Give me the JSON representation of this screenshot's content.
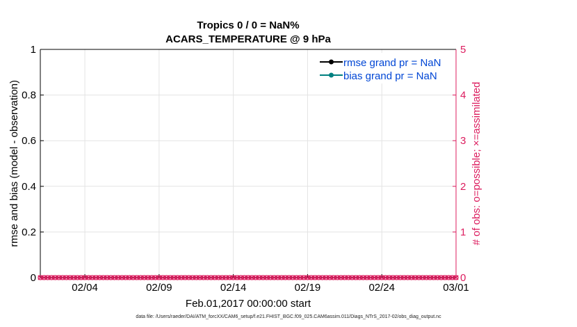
{
  "chart_data": {
    "type": "line",
    "title": "Tropics 0 / 0 = NaN%",
    "subtitle": "ACARS_TEMPERATURE @ 9 hPa",
    "xlabel": "Feb.01,2017 00:00:00 start",
    "ylabel_left": "rmse and bias (model - observation)",
    "ylabel_right": "# of obs: o=possible; ×=assimilated",
    "x_range_days": [
      0,
      28
    ],
    "x_ticks": [
      {
        "day": 3,
        "label": "02/04"
      },
      {
        "day": 8,
        "label": "02/09"
      },
      {
        "day": 13,
        "label": "02/14"
      },
      {
        "day": 18,
        "label": "02/19"
      },
      {
        "day": 23,
        "label": "02/24"
      },
      {
        "day": 28,
        "label": "03/01"
      }
    ],
    "ylim_left": [
      0,
      1
    ],
    "y_ticks_left": [
      "0",
      "0.2",
      "0.4",
      "0.6",
      "0.8",
      "1"
    ],
    "ylim_right": [
      0,
      5
    ],
    "y_ticks_right": [
      "0",
      "1",
      "2",
      "3",
      "4",
      "5"
    ],
    "grid": true,
    "legend_position": "top-right",
    "series": [
      {
        "name": "rmse grand pr = NaN",
        "color": "#000000",
        "marker": "dot",
        "values": []
      },
      {
        "name": "bias grand pr = NaN",
        "color": "#008080",
        "marker": "dot",
        "values": []
      },
      {
        "name": "obs possible",
        "color": "#dc1c5e",
        "marker": "circle",
        "x_days_step": 0.25,
        "value": 0
      },
      {
        "name": "obs assimilated",
        "color": "#dc1c5e",
        "marker": "x",
        "x_days_step": 0.25,
        "value": 0
      }
    ],
    "colors": {
      "left_axis": "#000000",
      "right_axis": "#dc1c5e",
      "grid": "#e3e3e3",
      "legend_text": "#0046d5"
    }
  },
  "footer": "data file: /Users/raeder/DAI/ATM_forcXX/CAM6_setup/f.e21.FHIST_BGC.f09_025.CAM6assim.011/Diags_NTrS_2017-02/obs_diag_output.nc"
}
